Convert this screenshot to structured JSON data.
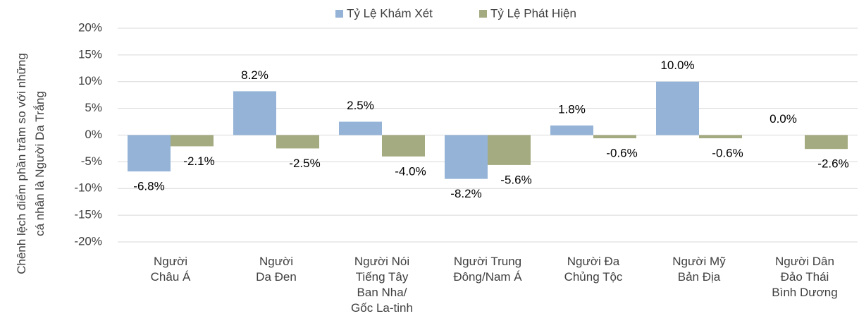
{
  "chart_data": {
    "type": "bar",
    "y_label": "Chênh lệch điểm phần trăm so với những\ncá nhân là Người Da Trắng",
    "categories": [
      "Người\nChâu Á",
      "Người\nDa Đen",
      "Người Nói\nTiếng Tây\nBan Nha/\nGốc La-tinh",
      "Người Trung\nĐông/Nam Á",
      "Người Đa\nChủng Tộc",
      "Người Mỹ\nBản Địa",
      "Người Dân\nĐảo Thái\nBình Dương"
    ],
    "series": [
      {
        "name": "Tỷ Lệ Khám Xét",
        "color": "#95b3d7",
        "values": [
          -6.8,
          8.2,
          2.5,
          -8.2,
          1.8,
          10.0,
          0.0
        ],
        "value_labels": [
          "-6.8%",
          "8.2%",
          "2.5%",
          "-8.2%",
          "1.8%",
          "10.0%",
          "0.0%"
        ]
      },
      {
        "name": "Tỷ Lệ Phát Hiện",
        "color": "#a5ab81",
        "values": [
          -2.1,
          -2.5,
          -4.0,
          -5.6,
          -0.6,
          -0.6,
          -2.6
        ],
        "value_labels": [
          "-2.1%",
          "-2.5%",
          "-4.0%",
          "-5.6%",
          "-0.6%",
          "-0.6%",
          "-2.6%"
        ]
      }
    ],
    "ylim": [
      -20,
      20
    ],
    "yticks": [
      {
        "value": -20,
        "label": "-20%"
      },
      {
        "value": -15,
        "label": "-15%"
      },
      {
        "value": -10,
        "label": "-10%"
      },
      {
        "value": -5,
        "label": "-5%"
      },
      {
        "value": 0,
        "label": "0%"
      },
      {
        "value": 5,
        "label": "5%"
      },
      {
        "value": 10,
        "label": "10%"
      },
      {
        "value": 15,
        "label": "15%"
      },
      {
        "value": 20,
        "label": "20%"
      }
    ],
    "grid": true,
    "legend": "top"
  }
}
